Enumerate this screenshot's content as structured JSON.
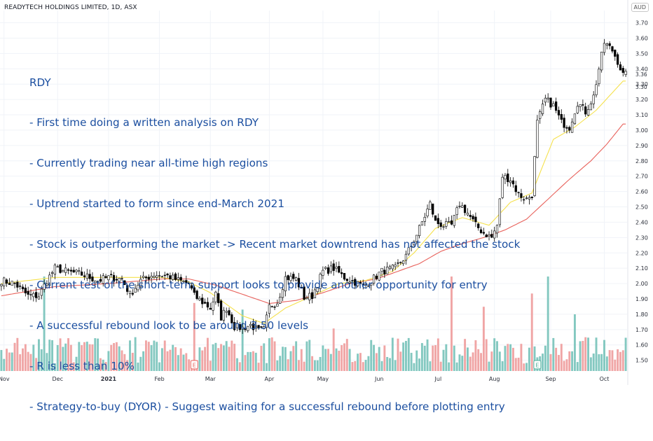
{
  "header": {
    "title": "READYTECH HOLDINGS LIMITED, 1D, ASX",
    "currency": "AUD"
  },
  "annotation_lines": [
    "RDY",
    "- First time doing a written analysis on RDY",
    "- Currently trading near all-time high regions",
    "- Uptrend started to form since end-March 2021",
    "- Stock is outperforming the market -> Recent market downtrend has not affected the stock",
    "- Current test of the short-term support looks to provide another opportunity for entry",
    "- A successful rebound look to be around 3.50 levels",
    "- R is less than 10%",
    "- Strategy-to-buy (DYOR) - Suggest waiting for a successful rebound before plotting entry"
  ],
  "colors": {
    "up": "#000000",
    "down": "#000000",
    "up_fill": "#ffffff",
    "down_fill": "#000000",
    "ma_short": "#f5e14c",
    "ma_long": "#e8625c",
    "vol_up": "#83c8c0",
    "vol_down": "#f0a5a5",
    "grid": "#f0f3f8",
    "axis_text": "#2a2e39"
  },
  "chart_data": {
    "type": "candlestick",
    "title": "READYTECH HOLDINGS LIMITED, 1D, ASX",
    "xlabel": "",
    "ylabel": "AUD",
    "ylim": [
      1.43,
      3.78
    ],
    "grid": true,
    "y_ticks": [
      "3.70",
      "3.60",
      "3.50",
      "3.40",
      "3.30",
      "3.20",
      "3.10",
      "3.00",
      "2.90",
      "2.80",
      "2.70",
      "2.60",
      "2.50",
      "2.40",
      "2.30",
      "2.20",
      "2.10",
      "2.00",
      "1.90",
      "1.80",
      "1.70",
      "1.60",
      "1.50"
    ],
    "price_markers": [
      "3.36",
      "3.30"
    ],
    "x_ticks": [
      {
        "label": "Nov",
        "bar": 1
      },
      {
        "label": "Dec",
        "bar": 21
      },
      {
        "label": "2021",
        "bar": 40
      },
      {
        "label": "Feb",
        "bar": 59
      },
      {
        "label": "Mar",
        "bar": 78
      },
      {
        "label": "Apr",
        "bar": 100
      },
      {
        "label": "May",
        "bar": 120
      },
      {
        "label": "Jun",
        "bar": 141
      },
      {
        "label": "Jul",
        "bar": 163
      },
      {
        "label": "Aug",
        "bar": 184
      },
      {
        "label": "Sep",
        "bar": 205
      },
      {
        "label": "Oct",
        "bar": 225
      }
    ],
    "event_markers": [
      {
        "label": "E",
        "bar": 72
      },
      {
        "label": "E",
        "bar": 200
      }
    ],
    "close_anchors": [
      [
        0,
        2.02
      ],
      [
        5,
        2.0
      ],
      [
        10,
        1.92
      ],
      [
        14,
        1.92
      ],
      [
        17,
        2.02
      ],
      [
        20,
        2.1
      ],
      [
        24,
        2.08
      ],
      [
        30,
        2.06
      ],
      [
        36,
        2.02
      ],
      [
        40,
        2.04
      ],
      [
        45,
        2.03
      ],
      [
        48,
        1.93
      ],
      [
        52,
        2.02
      ],
      [
        57,
        2.06
      ],
      [
        62,
        2.05
      ],
      [
        66,
        2.02
      ],
      [
        70,
        2.0
      ],
      [
        72,
        1.92
      ],
      [
        75,
        1.88
      ],
      [
        78,
        1.84
      ],
      [
        80,
        1.93
      ],
      [
        82,
        1.78
      ],
      [
        84,
        1.84
      ],
      [
        87,
        1.72
      ],
      [
        90,
        1.71
      ],
      [
        93,
        1.73
      ],
      [
        96,
        1.69
      ],
      [
        98,
        1.7
      ],
      [
        100,
        1.85
      ],
      [
        103,
        1.88
      ],
      [
        106,
        2.04
      ],
      [
        110,
        2.03
      ],
      [
        113,
        1.91
      ],
      [
        116,
        1.92
      ],
      [
        120,
        2.08
      ],
      [
        124,
        2.1
      ],
      [
        128,
        2.04
      ],
      [
        132,
        2.01
      ],
      [
        135,
        1.98
      ],
      [
        138,
        2.02
      ],
      [
        142,
        2.08
      ],
      [
        147,
        2.1
      ],
      [
        151,
        2.18
      ],
      [
        155,
        2.32
      ],
      [
        158,
        2.44
      ],
      [
        160,
        2.52
      ],
      [
        162,
        2.4
      ],
      [
        165,
        2.38
      ],
      [
        168,
        2.38
      ],
      [
        171,
        2.52
      ],
      [
        174,
        2.46
      ],
      [
        177,
        2.38
      ],
      [
        180,
        2.33
      ],
      [
        183,
        2.3
      ],
      [
        185,
        2.38
      ],
      [
        187,
        2.7
      ],
      [
        190,
        2.68
      ],
      [
        193,
        2.58
      ],
      [
        196,
        2.55
      ],
      [
        198,
        2.58
      ],
      [
        200,
        3.05
      ],
      [
        203,
        3.2
      ],
      [
        206,
        3.16
      ],
      [
        209,
        3.05
      ],
      [
        212,
        3.02
      ],
      [
        215,
        3.18
      ],
      [
        218,
        3.12
      ],
      [
        221,
        3.22
      ],
      [
        223,
        3.4
      ],
      [
        225,
        3.57
      ],
      [
        228,
        3.52
      ],
      [
        230,
        3.45
      ],
      [
        232,
        3.36
      ]
    ],
    "ma_short_anchors": [
      [
        0,
        2.0
      ],
      [
        20,
        2.04
      ],
      [
        40,
        2.04
      ],
      [
        60,
        2.04
      ],
      [
        70,
        2.01
      ],
      [
        78,
        1.94
      ],
      [
        90,
        1.79
      ],
      [
        98,
        1.74
      ],
      [
        106,
        1.84
      ],
      [
        116,
        1.92
      ],
      [
        126,
        2.0
      ],
      [
        136,
        2.02
      ],
      [
        146,
        2.08
      ],
      [
        154,
        2.2
      ],
      [
        162,
        2.36
      ],
      [
        172,
        2.43
      ],
      [
        182,
        2.38
      ],
      [
        190,
        2.53
      ],
      [
        198,
        2.59
      ],
      [
        206,
        2.94
      ],
      [
        214,
        3.02
      ],
      [
        222,
        3.13
      ],
      [
        232,
        3.32
      ]
    ],
    "ma_long_anchors": [
      [
        0,
        1.92
      ],
      [
        20,
        1.98
      ],
      [
        40,
        2.0
      ],
      [
        60,
        2.03
      ],
      [
        70,
        2.03
      ],
      [
        80,
        1.99
      ],
      [
        90,
        1.93
      ],
      [
        100,
        1.87
      ],
      [
        110,
        1.89
      ],
      [
        120,
        1.94
      ],
      [
        130,
        2.0
      ],
      [
        140,
        2.03
      ],
      [
        148,
        2.08
      ],
      [
        156,
        2.13
      ],
      [
        164,
        2.21
      ],
      [
        172,
        2.26
      ],
      [
        180,
        2.3
      ],
      [
        188,
        2.35
      ],
      [
        196,
        2.42
      ],
      [
        204,
        2.55
      ],
      [
        212,
        2.68
      ],
      [
        220,
        2.8
      ],
      [
        226,
        2.91
      ],
      [
        232,
        3.04
      ]
    ],
    "volume_spikes": [
      {
        "bar": 16,
        "value": 1.0
      },
      {
        "bar": 72,
        "value": 0.72
      },
      {
        "bar": 90,
        "value": 0.65
      },
      {
        "bar": 124,
        "value": 0.45
      },
      {
        "bar": 168,
        "value": 1.0
      },
      {
        "bar": 180,
        "value": 0.68
      },
      {
        "bar": 204,
        "value": 1.0
      },
      {
        "bar": 198,
        "value": 0.82
      },
      {
        "bar": 214,
        "value": 0.6
      }
    ]
  }
}
